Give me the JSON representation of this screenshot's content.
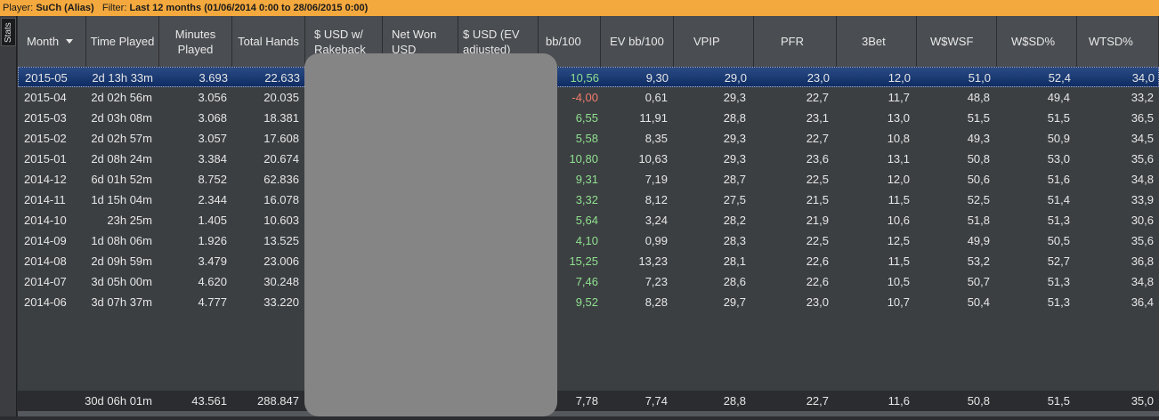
{
  "filter_bar": {
    "player_label": "Player:",
    "player_name": "SuCh (Alias)",
    "filter_label": "Filter:",
    "filter_value": "Last 12 months (01/06/2014 0:00 to 28/06/2015 0:00)"
  },
  "side_tab": {
    "label": "Stats"
  },
  "columns": [
    {
      "key": "month",
      "label": "Month"
    },
    {
      "key": "time_played",
      "label": "Time Played"
    },
    {
      "key": "minutes_played",
      "label": "Minutes Played"
    },
    {
      "key": "total_hands",
      "label": "Total Hands"
    },
    {
      "key": "usd_rakeback",
      "label": "$ USD w/ Rakeback"
    },
    {
      "key": "net_won",
      "label": "Net Won USD"
    },
    {
      "key": "usd_ev",
      "label": "$ USD (EV adjusted)"
    },
    {
      "key": "bb100",
      "label": "bb/100"
    },
    {
      "key": "ev_bb100",
      "label": "EV bb/100"
    },
    {
      "key": "vpip",
      "label": "VPIP"
    },
    {
      "key": "pfr",
      "label": "PFR"
    },
    {
      "key": "threebet",
      "label": "3Bet"
    },
    {
      "key": "wwsf",
      "label": "W$WSF"
    },
    {
      "key": "wsd",
      "label": "W$SD%"
    },
    {
      "key": "wtsd",
      "label": "WTSD%"
    }
  ],
  "rows": [
    {
      "month": "2015-05",
      "time_played": "2d 13h 33m",
      "minutes_played": "3.693",
      "total_hands": "22.633",
      "bb100": "10,56",
      "ev_bb100": "9,30",
      "vpip": "29,0",
      "pfr": "23,0",
      "threebet": "12,0",
      "wwsf": "51,0",
      "wsd": "52,4",
      "wtsd": "34,0"
    },
    {
      "month": "2015-04",
      "time_played": "2d 02h 56m",
      "minutes_played": "3.056",
      "total_hands": "20.035",
      "bb100": "-4,00",
      "ev_bb100": "0,61",
      "vpip": "29,3",
      "pfr": "22,7",
      "threebet": "11,7",
      "wwsf": "48,8",
      "wsd": "49,4",
      "wtsd": "33,2"
    },
    {
      "month": "2015-03",
      "time_played": "2d 03h 08m",
      "minutes_played": "3.068",
      "total_hands": "18.381",
      "bb100": "6,55",
      "ev_bb100": "11,91",
      "vpip": "28,8",
      "pfr": "23,1",
      "threebet": "13,0",
      "wwsf": "51,5",
      "wsd": "51,5",
      "wtsd": "36,5"
    },
    {
      "month": "2015-02",
      "time_played": "2d 02h 57m",
      "minutes_played": "3.057",
      "total_hands": "17.608",
      "bb100": "5,58",
      "ev_bb100": "8,35",
      "vpip": "29,3",
      "pfr": "22,7",
      "threebet": "10,8",
      "wwsf": "49,3",
      "wsd": "50,9",
      "wtsd": "34,5"
    },
    {
      "month": "2015-01",
      "time_played": "2d 08h 24m",
      "minutes_played": "3.384",
      "total_hands": "20.674",
      "bb100": "10,80",
      "ev_bb100": "10,63",
      "vpip": "29,3",
      "pfr": "23,6",
      "threebet": "13,1",
      "wwsf": "50,8",
      "wsd": "53,0",
      "wtsd": "35,6"
    },
    {
      "month": "2014-12",
      "time_played": "6d 01h 52m",
      "minutes_played": "8.752",
      "total_hands": "62.836",
      "bb100": "9,31",
      "ev_bb100": "7,19",
      "vpip": "28,7",
      "pfr": "22,5",
      "threebet": "12,0",
      "wwsf": "50,6",
      "wsd": "51,6",
      "wtsd": "34,8"
    },
    {
      "month": "2014-11",
      "time_played": "1d 15h 04m",
      "minutes_played": "2.344",
      "total_hands": "16.078",
      "bb100": "3,32",
      "ev_bb100": "8,12",
      "vpip": "27,5",
      "pfr": "21,5",
      "threebet": "11,5",
      "wwsf": "52,5",
      "wsd": "51,4",
      "wtsd": "33,9"
    },
    {
      "month": "2014-10",
      "time_played": "23h 25m",
      "minutes_played": "1.405",
      "total_hands": "10.603",
      "bb100": "5,64",
      "ev_bb100": "3,24",
      "vpip": "28,2",
      "pfr": "21,9",
      "threebet": "10,6",
      "wwsf": "51,8",
      "wsd": "51,3",
      "wtsd": "30,6"
    },
    {
      "month": "2014-09",
      "time_played": "1d 08h 06m",
      "minutes_played": "1.926",
      "total_hands": "13.525",
      "bb100": "4,10",
      "ev_bb100": "0,99",
      "vpip": "28,3",
      "pfr": "22,5",
      "threebet": "12,5",
      "wwsf": "49,9",
      "wsd": "50,5",
      "wtsd": "35,6"
    },
    {
      "month": "2014-08",
      "time_played": "2d 09h 59m",
      "minutes_played": "3.479",
      "total_hands": "23.006",
      "bb100": "15,25",
      "ev_bb100": "13,23",
      "vpip": "28,1",
      "pfr": "22,6",
      "threebet": "11,5",
      "wwsf": "53,2",
      "wsd": "52,7",
      "wtsd": "36,8"
    },
    {
      "month": "2014-07",
      "time_played": "3d 05h 00m",
      "minutes_played": "4.620",
      "total_hands": "30.248",
      "bb100": "7,46",
      "ev_bb100": "7,23",
      "vpip": "28,6",
      "pfr": "22,6",
      "threebet": "10,5",
      "wwsf": "50,7",
      "wsd": "51,3",
      "wtsd": "34,8"
    },
    {
      "month": "2014-06",
      "time_played": "3d 07h 37m",
      "minutes_played": "4.777",
      "total_hands": "33.220",
      "bb100": "9,52",
      "ev_bb100": "8,28",
      "vpip": "29,7",
      "pfr": "23,0",
      "threebet": "10,7",
      "wwsf": "50,4",
      "wsd": "51,3",
      "wtsd": "36,4"
    }
  ],
  "totals": {
    "time_played": "30d 06h 01m",
    "minutes_played": "43.561",
    "total_hands": "288.847",
    "bb100": "7,78",
    "ev_bb100": "7,74",
    "vpip": "28,8",
    "pfr": "22,7",
    "threebet": "11,6",
    "wwsf": "50,8",
    "wsd": "51,5",
    "wtsd": "35,0"
  },
  "colors": {
    "filter_bar": "#f4a93e",
    "selected_row": "#1a3a75",
    "positive": "#8fe08f",
    "negative": "#f07c6c",
    "redaction": "#858585"
  },
  "icons": {
    "sort": "sort-desc-arrow-icon"
  }
}
